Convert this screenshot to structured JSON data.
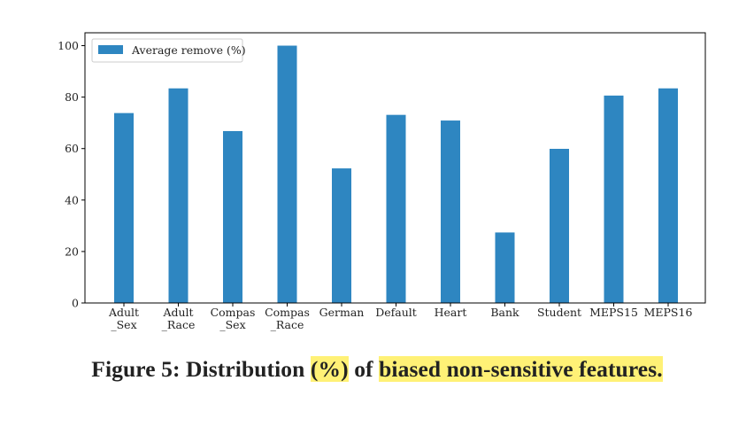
{
  "chart_data": {
    "type": "bar",
    "categories": [
      [
        "Adult",
        "_Sex"
      ],
      [
        "Adult",
        "_Race"
      ],
      [
        "Compas",
        "_Sex"
      ],
      [
        "Compas",
        "_Race"
      ],
      [
        "German"
      ],
      [
        "Default"
      ],
      [
        "Heart"
      ],
      [
        "Bank"
      ],
      [
        "Student"
      ],
      [
        "MEPS15"
      ],
      [
        "MEPS16"
      ]
    ],
    "series": [
      {
        "name": "Average remove (%)",
        "color": "#2e86c1",
        "values": [
          73.8,
          83.4,
          66.8,
          100.0,
          52.3,
          73.1,
          70.9,
          27.4,
          59.9,
          80.6,
          83.4
        ]
      }
    ],
    "ylim": [
      0,
      105
    ],
    "yticks": [
      0,
      20,
      40,
      60,
      80,
      100
    ],
    "xlabel": "",
    "ylabel": "",
    "legend": "top-left",
    "grid": false
  },
  "caption": {
    "prefix": "Figure 5: Distribution ",
    "highlight1": "(%)",
    "middle": " of ",
    "highlight2": "biased non-sensitive features."
  }
}
